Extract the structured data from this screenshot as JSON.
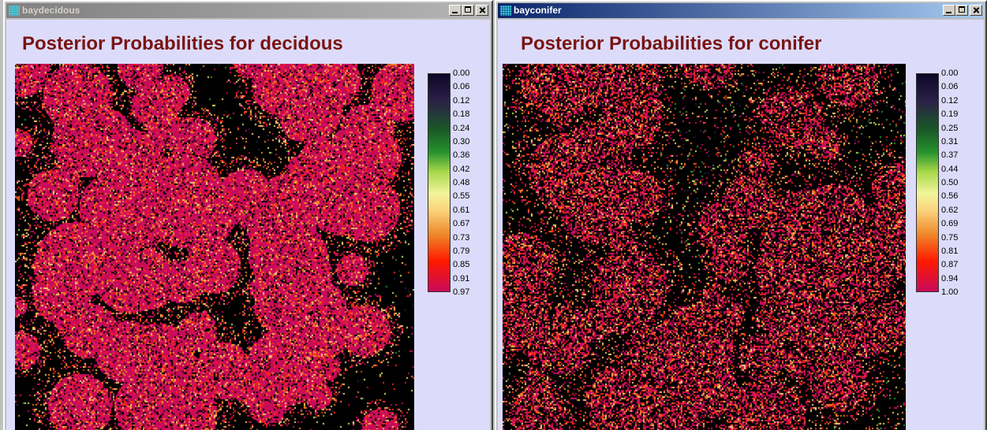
{
  "windows": [
    {
      "title": "baydecidous",
      "heading": "Posterior Probabilities for decidous",
      "legend_ticks": [
        "0.00",
        "0.06",
        "0.12",
        "0.18",
        "0.24",
        "0.30",
        "0.36",
        "0.42",
        "0.48",
        "0.55",
        "0.61",
        "0.67",
        "0.73",
        "0.79",
        "0.85",
        "0.91",
        "0.97"
      ]
    },
    {
      "title": "bayconifer",
      "heading": "Posterior Probabilities for conifer",
      "legend_ticks": [
        "0.00",
        "0.06",
        "0.12",
        "0.19",
        "0.25",
        "0.31",
        "0.37",
        "0.44",
        "0.50",
        "0.56",
        "0.62",
        "0.69",
        "0.75",
        "0.81",
        "0.87",
        "0.94",
        "1.00"
      ]
    }
  ],
  "colors": {
    "title_text": "#7a1414",
    "client_bg": "#dcdcfa",
    "active_title": "#0a246a",
    "inactive_title": "#808080"
  }
}
